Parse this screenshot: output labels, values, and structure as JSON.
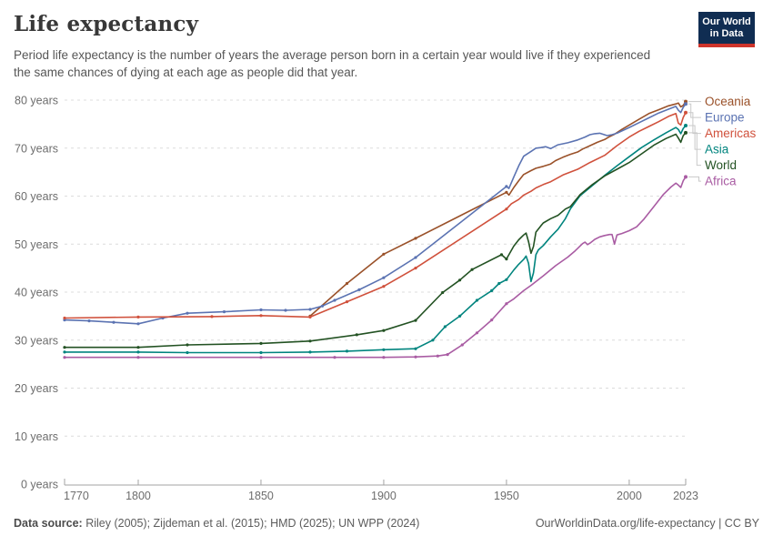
{
  "header": {
    "title": "Life expectancy",
    "subtitle": "Period life expectancy is the number of years the average person born in a certain year would live if they experienced the same chances of dying at each age as people did that year."
  },
  "logo": {
    "line1": "Our World",
    "line2": "in Data",
    "bg_color": "#102D52",
    "bar_color": "#CE342B"
  },
  "footer": {
    "datasource_label": "Data source:",
    "datasource_text": " Riley (2005); Zijdeman et al. (2015); HMD (2025); UN WPP (2024)",
    "right_text": "OurWorldinData.org/life-expectancy | CC BY"
  },
  "chart_data": {
    "type": "line",
    "title": "Life expectancy",
    "xlabel": "",
    "ylabel": "years",
    "xlim": [
      1770,
      2023
    ],
    "ylim": [
      0,
      80
    ],
    "x_ticks": [
      1770,
      1800,
      1850,
      1900,
      1950,
      2000,
      2023
    ],
    "y_ticks": [
      0,
      10,
      20,
      30,
      40,
      50,
      60,
      70,
      80
    ],
    "y_tick_suffix": " years",
    "grid": true,
    "legend_position": "right",
    "marker_until": 1950,
    "series": [
      {
        "id": "oceania",
        "name": "Oceania",
        "color": "#9A5129",
        "points": [
          [
            1870,
            35.0
          ],
          [
            1885,
            41.8
          ],
          [
            1900,
            47.9
          ],
          [
            1913,
            51.2
          ],
          [
            1950,
            60.8
          ],
          [
            1951,
            60.2
          ],
          [
            1953,
            61.8
          ],
          [
            1955,
            63.2
          ],
          [
            1957,
            64.5
          ],
          [
            1960,
            65.3
          ],
          [
            1962,
            65.8
          ],
          [
            1965,
            66.2
          ],
          [
            1968,
            66.7
          ],
          [
            1970,
            67.4
          ],
          [
            1973,
            68.1
          ],
          [
            1976,
            68.7
          ],
          [
            1979,
            69.2
          ],
          [
            1981,
            69.8
          ],
          [
            1984,
            70.5
          ],
          [
            1987,
            71.2
          ],
          [
            1990,
            71.8
          ],
          [
            1992,
            72.4
          ],
          [
            1994,
            72.9
          ],
          [
            1997,
            73.9
          ],
          [
            2000,
            74.8
          ],
          [
            2004,
            76.0
          ],
          [
            2008,
            77.2
          ],
          [
            2012,
            78.0
          ],
          [
            2016,
            78.8
          ],
          [
            2019,
            79.2
          ],
          [
            2020,
            79.4
          ],
          [
            2021,
            78.6
          ],
          [
            2022,
            78.9
          ],
          [
            2023,
            79.7
          ]
        ]
      },
      {
        "id": "europe",
        "name": "Europe",
        "color": "#5B73B2",
        "points": [
          [
            1770,
            34.2
          ],
          [
            1780,
            34.0
          ],
          [
            1790,
            33.7
          ],
          [
            1800,
            33.4
          ],
          [
            1810,
            34.6
          ],
          [
            1820,
            35.6
          ],
          [
            1835,
            35.9
          ],
          [
            1850,
            36.3
          ],
          [
            1860,
            36.2
          ],
          [
            1870,
            36.4
          ],
          [
            1875,
            37.1
          ],
          [
            1880,
            38.3
          ],
          [
            1890,
            40.5
          ],
          [
            1900,
            43.0
          ],
          [
            1913,
            47.2
          ],
          [
            1950,
            62.0
          ],
          [
            1951,
            61.6
          ],
          [
            1953,
            64.0
          ],
          [
            1955,
            66.3
          ],
          [
            1957,
            68.3
          ],
          [
            1960,
            69.3
          ],
          [
            1962,
            70.0
          ],
          [
            1964,
            70.1
          ],
          [
            1966,
            70.3
          ],
          [
            1968,
            69.9
          ],
          [
            1971,
            70.7
          ],
          [
            1975,
            71.1
          ],
          [
            1979,
            71.7
          ],
          [
            1982,
            72.3
          ],
          [
            1984,
            72.8
          ],
          [
            1986,
            73.0
          ],
          [
            1988,
            73.1
          ],
          [
            1991,
            72.6
          ],
          [
            1993,
            72.8
          ],
          [
            1995,
            73.1
          ],
          [
            2000,
            74.3
          ],
          [
            2004,
            75.3
          ],
          [
            2008,
            76.3
          ],
          [
            2012,
            77.3
          ],
          [
            2016,
            78.1
          ],
          [
            2019,
            78.7
          ],
          [
            2020,
            77.9
          ],
          [
            2021,
            77.4
          ],
          [
            2022,
            78.5
          ],
          [
            2023,
            79.2
          ]
        ]
      },
      {
        "id": "americas",
        "name": "Americas",
        "color": "#D0513C",
        "points": [
          [
            1770,
            34.6
          ],
          [
            1800,
            34.8
          ],
          [
            1830,
            34.9
          ],
          [
            1850,
            35.1
          ],
          [
            1870,
            34.8
          ],
          [
            1885,
            38.0
          ],
          [
            1900,
            41.2
          ],
          [
            1913,
            45.0
          ],
          [
            1950,
            57.3
          ],
          [
            1952,
            58.4
          ],
          [
            1955,
            59.3
          ],
          [
            1957,
            60.2
          ],
          [
            1960,
            61.0
          ],
          [
            1962,
            61.7
          ],
          [
            1965,
            62.4
          ],
          [
            1968,
            63.0
          ],
          [
            1973,
            64.4
          ],
          [
            1979,
            65.6
          ],
          [
            1984,
            67.0
          ],
          [
            1990,
            68.5
          ],
          [
            1995,
            70.5
          ],
          [
            2000,
            72.3
          ],
          [
            2004,
            73.5
          ],
          [
            2008,
            74.5
          ],
          [
            2012,
            75.5
          ],
          [
            2016,
            76.6
          ],
          [
            2019,
            77.2
          ],
          [
            2020,
            75.2
          ],
          [
            2021,
            74.8
          ],
          [
            2022,
            76.4
          ],
          [
            2023,
            77.4
          ]
        ]
      },
      {
        "id": "asia",
        "name": "Asia",
        "color": "#00847E",
        "points": [
          [
            1770,
            27.5
          ],
          [
            1800,
            27.5
          ],
          [
            1820,
            27.4
          ],
          [
            1850,
            27.4
          ],
          [
            1870,
            27.5
          ],
          [
            1885,
            27.7
          ],
          [
            1900,
            28.0
          ],
          [
            1913,
            28.2
          ],
          [
            1920,
            30.0
          ],
          [
            1925,
            32.8
          ],
          [
            1931,
            35.0
          ],
          [
            1938,
            38.3
          ],
          [
            1944,
            40.3
          ],
          [
            1947,
            41.8
          ],
          [
            1950,
            42.6
          ],
          [
            1953,
            44.6
          ],
          [
            1955,
            45.8
          ],
          [
            1957,
            46.8
          ],
          [
            1958,
            47.5
          ],
          [
            1959,
            46.0
          ],
          [
            1960,
            42.2
          ],
          [
            1961,
            44.0
          ],
          [
            1962,
            47.8
          ],
          [
            1963,
            48.8
          ],
          [
            1965,
            49.7
          ],
          [
            1968,
            51.5
          ],
          [
            1971,
            53.1
          ],
          [
            1974,
            55.3
          ],
          [
            1976,
            57.3
          ],
          [
            1980,
            60.1
          ],
          [
            1985,
            62.2
          ],
          [
            1990,
            64.3
          ],
          [
            1995,
            66.3
          ],
          [
            2000,
            68.2
          ],
          [
            2005,
            70.1
          ],
          [
            2010,
            71.7
          ],
          [
            2015,
            73.2
          ],
          [
            2019,
            74.3
          ],
          [
            2020,
            73.9
          ],
          [
            2021,
            73.0
          ],
          [
            2022,
            74.1
          ],
          [
            2023,
            74.7
          ]
        ]
      },
      {
        "id": "world",
        "name": "World",
        "color": "#235223",
        "points": [
          [
            1770,
            28.5
          ],
          [
            1800,
            28.5
          ],
          [
            1820,
            29.0
          ],
          [
            1850,
            29.3
          ],
          [
            1870,
            29.8
          ],
          [
            1889,
            31.1
          ],
          [
            1900,
            32.0
          ],
          [
            1913,
            34.1
          ],
          [
            1924,
            39.9
          ],
          [
            1931,
            42.5
          ],
          [
            1936,
            44.7
          ],
          [
            1948,
            47.8
          ],
          [
            1950,
            46.9
          ],
          [
            1951,
            47.8
          ],
          [
            1953,
            49.6
          ],
          [
            1955,
            50.9
          ],
          [
            1957,
            51.9
          ],
          [
            1958,
            52.3
          ],
          [
            1959,
            50.5
          ],
          [
            1960,
            48.1
          ],
          [
            1961,
            49.5
          ],
          [
            1962,
            52.5
          ],
          [
            1964,
            53.8
          ],
          [
            1965,
            54.4
          ],
          [
            1968,
            55.3
          ],
          [
            1971,
            56.0
          ],
          [
            1974,
            57.3
          ],
          [
            1976,
            57.8
          ],
          [
            1980,
            60.3
          ],
          [
            1985,
            62.4
          ],
          [
            1990,
            64.2
          ],
          [
            1995,
            65.6
          ],
          [
            2000,
            67.0
          ],
          [
            2005,
            68.8
          ],
          [
            2010,
            70.6
          ],
          [
            2015,
            72.0
          ],
          [
            2019,
            72.9
          ],
          [
            2020,
            72.1
          ],
          [
            2021,
            71.2
          ],
          [
            2022,
            72.6
          ],
          [
            2023,
            73.2
          ]
        ]
      },
      {
        "id": "africa",
        "name": "Africa",
        "color": "#A95CA3",
        "points": [
          [
            1770,
            26.4
          ],
          [
            1800,
            26.4
          ],
          [
            1850,
            26.4
          ],
          [
            1880,
            26.4
          ],
          [
            1900,
            26.4
          ],
          [
            1913,
            26.5
          ],
          [
            1922,
            26.7
          ],
          [
            1926,
            27.0
          ],
          [
            1932,
            29.0
          ],
          [
            1938,
            31.5
          ],
          [
            1944,
            34.2
          ],
          [
            1950,
            37.6
          ],
          [
            1953,
            38.6
          ],
          [
            1957,
            40.3
          ],
          [
            1960,
            41.4
          ],
          [
            1965,
            43.4
          ],
          [
            1970,
            45.5
          ],
          [
            1975,
            47.3
          ],
          [
            1978,
            48.6
          ],
          [
            1981,
            50.1
          ],
          [
            1982,
            50.4
          ],
          [
            1983,
            49.9
          ],
          [
            1984,
            50.2
          ],
          [
            1986,
            51.0
          ],
          [
            1988,
            51.5
          ],
          [
            1990,
            51.8
          ],
          [
            1992,
            52.0
          ],
          [
            1993,
            52.0
          ],
          [
            1994,
            50.0
          ],
          [
            1995,
            51.9
          ],
          [
            1997,
            52.2
          ],
          [
            2000,
            52.8
          ],
          [
            2003,
            53.6
          ],
          [
            2006,
            55.2
          ],
          [
            2010,
            57.8
          ],
          [
            2014,
            60.4
          ],
          [
            2017,
            61.9
          ],
          [
            2019,
            62.7
          ],
          [
            2020,
            62.3
          ],
          [
            2021,
            61.8
          ],
          [
            2022,
            63.2
          ],
          [
            2023,
            64.0
          ]
        ]
      }
    ]
  }
}
